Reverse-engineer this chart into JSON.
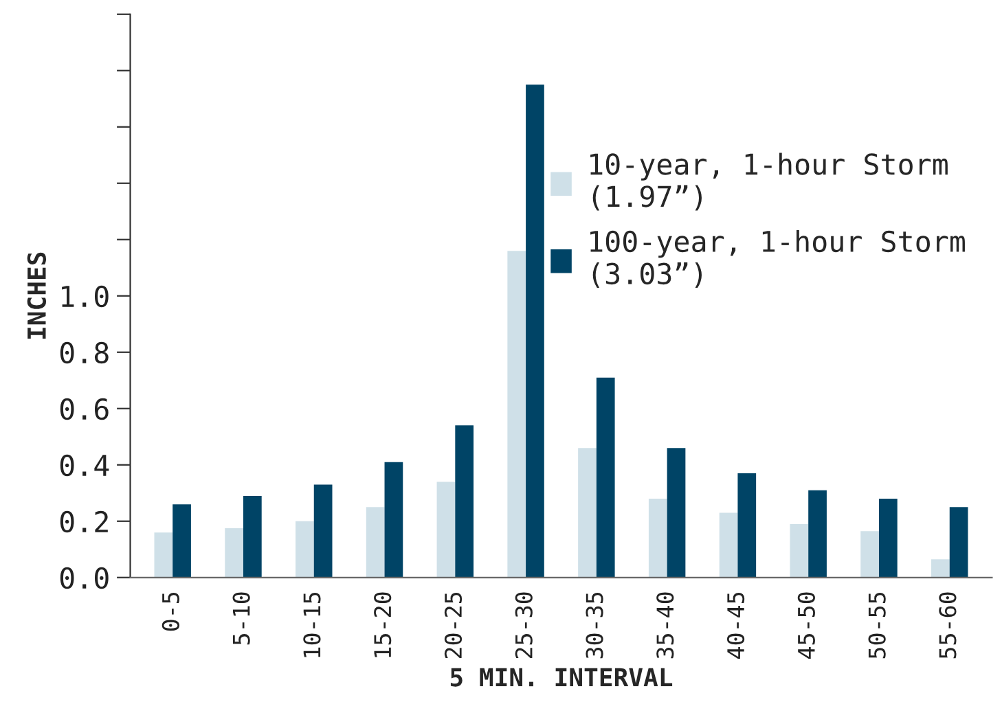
{
  "chart_data": {
    "type": "bar",
    "xlabel": "5 MIN. INTERVAL",
    "ylabel": "INCHES",
    "categories": [
      "0-5",
      "5-10",
      "10-15",
      "15-20",
      "20-25",
      "25-30",
      "30-35",
      "35-40",
      "40-45",
      "45-50",
      "50-55",
      "55-60"
    ],
    "series": [
      {
        "name": "10-year, 1-hour Storm\n(1.97”)",
        "color": "#cfe0e8",
        "values": [
          0.16,
          0.175,
          0.2,
          0.25,
          0.34,
          1.16,
          0.46,
          0.28,
          0.23,
          0.19,
          0.165,
          0.065
        ]
      },
      {
        "name": "100-year, 1-hour Storm\n(3.03”)",
        "color": "#004466",
        "values": [
          0.26,
          0.29,
          0.33,
          0.41,
          0.54,
          1.75,
          0.71,
          0.46,
          0.37,
          0.31,
          0.28,
          0.25
        ]
      }
    ],
    "ylim": [
      0,
      2.0
    ],
    "yticks": [
      {
        "value": 0,
        "label": "0.0"
      },
      0.2,
      0.4,
      0.6,
      0.8,
      {
        "value": 1,
        "label": "1.0"
      },
      {
        "value": 1.2,
        "label": null
      },
      {
        "value": 1.4,
        "label": null
      },
      {
        "value": 1.6,
        "label": null
      },
      {
        "value": 1.8,
        "label": null
      },
      {
        "value": 2.0,
        "label": null
      }
    ],
    "grid": false,
    "legend": "top right"
  }
}
